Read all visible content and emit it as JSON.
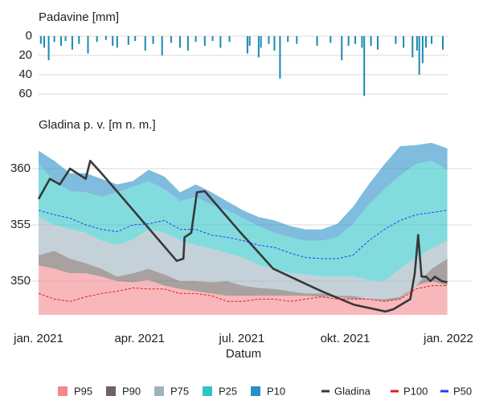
{
  "chart_data": [
    {
      "type": "bar",
      "title": "Padavine [mm]",
      "x": [
        2,
        5,
        9,
        14,
        20,
        24,
        30,
        36,
        44,
        52,
        60,
        66,
        70,
        80,
        86,
        95,
        102,
        110,
        118,
        126,
        133,
        140,
        148,
        155,
        162,
        170,
        186,
        188,
        196,
        198,
        205,
        210,
        215,
        222,
        230,
        248,
        260,
        270,
        276,
        282,
        288,
        290,
        296,
        302,
        318,
        325,
        333,
        337,
        339,
        342,
        345,
        350,
        360
      ],
      "values": [
        8,
        12,
        25,
        6,
        10,
        5,
        14,
        8,
        18,
        6,
        4,
        10,
        12,
        9,
        5,
        15,
        8,
        20,
        7,
        12,
        15,
        6,
        10,
        5,
        12,
        6,
        18,
        10,
        22,
        12,
        8,
        15,
        44,
        6,
        8,
        10,
        7,
        25,
        10,
        8,
        12,
        62,
        10,
        14,
        8,
        12,
        22,
        15,
        40,
        28,
        12,
        8,
        14
      ],
      "color": "#1a8ab0",
      "xlim": [
        0,
        365
      ],
      "ylim": [
        0,
        62
      ],
      "yticks": [
        0,
        20,
        40,
        60
      ],
      "inverted": true,
      "grid": true
    },
    {
      "type": "area",
      "title": "Gladina p. v. [m n. m.]",
      "xlabel": "Datum",
      "x": [
        0,
        14,
        28,
        42,
        56,
        70,
        84,
        98,
        112,
        126,
        140,
        154,
        168,
        182,
        196,
        210,
        224,
        238,
        252,
        266,
        280,
        294,
        308,
        322,
        336,
        350,
        364
      ],
      "xlim": [
        0,
        365
      ],
      "xticks": [
        {
          "value": 0,
          "label": "jan. 2021"
        },
        {
          "value": 90,
          "label": "apr. 2021"
        },
        {
          "value": 181,
          "label": "jul. 2021"
        },
        {
          "value": 273,
          "label": "okt. 2021"
        },
        {
          "value": 365,
          "label": "jan. 2022"
        }
      ],
      "ylim": [
        347,
        362.5
      ],
      "yticks": [
        350,
        355,
        360
      ],
      "grid": true,
      "series": [
        {
          "name": "P95",
          "color": "#f4888d",
          "style": "band",
          "values": [
            351.4,
            351.1,
            350.7,
            350.7,
            350.4,
            350.0,
            349.9,
            350.1,
            349.6,
            349.3,
            349.1,
            348.9,
            348.7,
            348.7,
            348.7,
            348.7,
            348.7,
            348.7,
            348.6,
            348.6,
            348.4,
            348.4,
            348.2,
            348.4,
            349.6,
            350.0,
            349.6
          ]
        },
        {
          "name": "P90",
          "color": "#6e635f",
          "style": "band",
          "values": [
            352.3,
            352.7,
            352.0,
            351.6,
            351.1,
            350.4,
            350.7,
            351.1,
            350.6,
            350.0,
            350.0,
            349.9,
            350.0,
            349.6,
            349.4,
            349.3,
            349.1,
            348.9,
            348.9,
            348.7,
            348.7,
            348.4,
            348.4,
            348.6,
            349.6,
            351.1,
            352.0
          ]
        },
        {
          "name": "P75",
          "color": "#9fb3bf",
          "style": "band",
          "values": [
            355.7,
            355.0,
            354.6,
            354.3,
            353.6,
            353.2,
            353.7,
            354.6,
            354.3,
            353.6,
            353.2,
            352.9,
            352.5,
            352.1,
            351.4,
            351.1,
            350.7,
            350.6,
            350.4,
            350.4,
            350.4,
            350.1,
            350.0,
            351.1,
            352.1,
            352.9,
            353.6
          ]
        },
        {
          "name": "P25",
          "color": "#2ec4c8",
          "style": "band",
          "values": [
            360.4,
            358.9,
            358.0,
            357.9,
            357.5,
            357.9,
            358.4,
            358.9,
            358.2,
            357.1,
            357.5,
            356.8,
            356.3,
            355.6,
            354.9,
            354.3,
            353.9,
            353.6,
            353.6,
            353.9,
            355.1,
            356.8,
            358.2,
            359.4,
            360.4,
            360.7,
            359.9
          ]
        },
        {
          "name": "P10",
          "color": "#2a8fc6",
          "style": "band",
          "values": [
            361.6,
            360.7,
            359.6,
            359.6,
            359.1,
            358.6,
            358.9,
            359.9,
            359.3,
            357.9,
            358.6,
            357.9,
            357.1,
            356.3,
            355.7,
            355.4,
            354.9,
            354.6,
            354.6,
            355.1,
            356.6,
            358.6,
            360.4,
            362.0,
            362.1,
            362.3,
            361.8
          ]
        },
        {
          "name": "Gladina",
          "color": "#383838",
          "style": "line",
          "x": [
            0,
            10,
            19,
            28,
            42,
            46,
            56,
            123,
            129,
            130,
            136,
            141,
            148,
            180,
            209,
            252,
            281,
            309,
            316,
            331,
            335,
            338,
            341,
            345,
            349,
            353,
            359,
            364
          ],
          "values": [
            357.3,
            359.1,
            358.6,
            360.0,
            359.1,
            360.7,
            359.6,
            351.8,
            352.0,
            353.9,
            354.3,
            357.9,
            358.0,
            354.3,
            351.1,
            349.1,
            347.9,
            347.3,
            347.5,
            348.4,
            350.7,
            354.1,
            350.4,
            350.4,
            350.0,
            350.4,
            350.0,
            349.9
          ]
        },
        {
          "name": "P100",
          "color": "#e41a1c",
          "style": "dashed",
          "values": [
            348.9,
            348.4,
            348.2,
            348.6,
            348.9,
            349.1,
            349.4,
            349.3,
            349.3,
            348.9,
            348.9,
            348.7,
            348.2,
            348.2,
            348.4,
            348.4,
            348.2,
            348.4,
            348.6,
            348.4,
            348.4,
            348.4,
            348.2,
            348.4,
            349.3,
            349.6,
            349.6
          ]
        },
        {
          "name": "P50",
          "color": "#1f3fff",
          "style": "dashed",
          "values": [
            356.3,
            355.9,
            355.6,
            355.0,
            354.6,
            354.4,
            355.0,
            355.1,
            355.4,
            354.6,
            354.6,
            354.1,
            353.9,
            353.6,
            353.2,
            353.0,
            352.5,
            352.1,
            352.0,
            352.0,
            352.3,
            353.6,
            354.6,
            355.4,
            355.9,
            356.1,
            356.3
          ]
        }
      ]
    }
  ]
}
